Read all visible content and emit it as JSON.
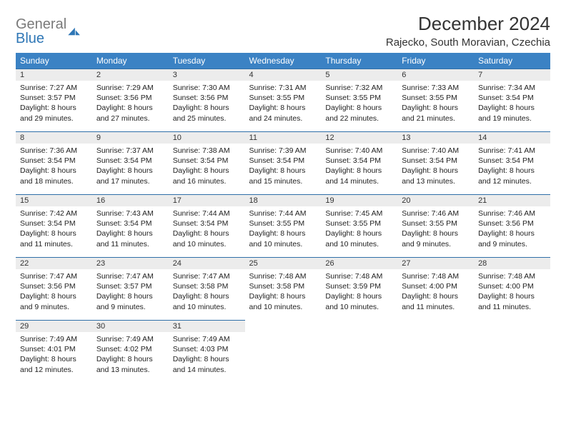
{
  "logo": {
    "text1": "General",
    "text2": "Blue"
  },
  "header": {
    "month_title": "December 2024",
    "location": "Rajecko, South Moravian, Czechia"
  },
  "colors": {
    "header_bg": "#3b82c4",
    "header_text": "#ffffff",
    "daynum_bg": "#ececec",
    "daynum_border": "#2f6fa8",
    "body_text": "#222222",
    "logo_gray": "#7a7a7a",
    "logo_blue": "#2f77b6"
  },
  "weekdays": [
    "Sunday",
    "Monday",
    "Tuesday",
    "Wednesday",
    "Thursday",
    "Friday",
    "Saturday"
  ],
  "weeks": [
    [
      {
        "n": "1",
        "sr": "7:27 AM",
        "ss": "3:57 PM",
        "dl": "8 hours and 29 minutes."
      },
      {
        "n": "2",
        "sr": "7:29 AM",
        "ss": "3:56 PM",
        "dl": "8 hours and 27 minutes."
      },
      {
        "n": "3",
        "sr": "7:30 AM",
        "ss": "3:56 PM",
        "dl": "8 hours and 25 minutes."
      },
      {
        "n": "4",
        "sr": "7:31 AM",
        "ss": "3:55 PM",
        "dl": "8 hours and 24 minutes."
      },
      {
        "n": "5",
        "sr": "7:32 AM",
        "ss": "3:55 PM",
        "dl": "8 hours and 22 minutes."
      },
      {
        "n": "6",
        "sr": "7:33 AM",
        "ss": "3:55 PM",
        "dl": "8 hours and 21 minutes."
      },
      {
        "n": "7",
        "sr": "7:34 AM",
        "ss": "3:54 PM",
        "dl": "8 hours and 19 minutes."
      }
    ],
    [
      {
        "n": "8",
        "sr": "7:36 AM",
        "ss": "3:54 PM",
        "dl": "8 hours and 18 minutes."
      },
      {
        "n": "9",
        "sr": "7:37 AM",
        "ss": "3:54 PM",
        "dl": "8 hours and 17 minutes."
      },
      {
        "n": "10",
        "sr": "7:38 AM",
        "ss": "3:54 PM",
        "dl": "8 hours and 16 minutes."
      },
      {
        "n": "11",
        "sr": "7:39 AM",
        "ss": "3:54 PM",
        "dl": "8 hours and 15 minutes."
      },
      {
        "n": "12",
        "sr": "7:40 AM",
        "ss": "3:54 PM",
        "dl": "8 hours and 14 minutes."
      },
      {
        "n": "13",
        "sr": "7:40 AM",
        "ss": "3:54 PM",
        "dl": "8 hours and 13 minutes."
      },
      {
        "n": "14",
        "sr": "7:41 AM",
        "ss": "3:54 PM",
        "dl": "8 hours and 12 minutes."
      }
    ],
    [
      {
        "n": "15",
        "sr": "7:42 AM",
        "ss": "3:54 PM",
        "dl": "8 hours and 11 minutes."
      },
      {
        "n": "16",
        "sr": "7:43 AM",
        "ss": "3:54 PM",
        "dl": "8 hours and 11 minutes."
      },
      {
        "n": "17",
        "sr": "7:44 AM",
        "ss": "3:54 PM",
        "dl": "8 hours and 10 minutes."
      },
      {
        "n": "18",
        "sr": "7:44 AM",
        "ss": "3:55 PM",
        "dl": "8 hours and 10 minutes."
      },
      {
        "n": "19",
        "sr": "7:45 AM",
        "ss": "3:55 PM",
        "dl": "8 hours and 10 minutes."
      },
      {
        "n": "20",
        "sr": "7:46 AM",
        "ss": "3:55 PM",
        "dl": "8 hours and 9 minutes."
      },
      {
        "n": "21",
        "sr": "7:46 AM",
        "ss": "3:56 PM",
        "dl": "8 hours and 9 minutes."
      }
    ],
    [
      {
        "n": "22",
        "sr": "7:47 AM",
        "ss": "3:56 PM",
        "dl": "8 hours and 9 minutes."
      },
      {
        "n": "23",
        "sr": "7:47 AM",
        "ss": "3:57 PM",
        "dl": "8 hours and 9 minutes."
      },
      {
        "n": "24",
        "sr": "7:47 AM",
        "ss": "3:58 PM",
        "dl": "8 hours and 10 minutes."
      },
      {
        "n": "25",
        "sr": "7:48 AM",
        "ss": "3:58 PM",
        "dl": "8 hours and 10 minutes."
      },
      {
        "n": "26",
        "sr": "7:48 AM",
        "ss": "3:59 PM",
        "dl": "8 hours and 10 minutes."
      },
      {
        "n": "27",
        "sr": "7:48 AM",
        "ss": "4:00 PM",
        "dl": "8 hours and 11 minutes."
      },
      {
        "n": "28",
        "sr": "7:48 AM",
        "ss": "4:00 PM",
        "dl": "8 hours and 11 minutes."
      }
    ],
    [
      {
        "n": "29",
        "sr": "7:49 AM",
        "ss": "4:01 PM",
        "dl": "8 hours and 12 minutes."
      },
      {
        "n": "30",
        "sr": "7:49 AM",
        "ss": "4:02 PM",
        "dl": "8 hours and 13 minutes."
      },
      {
        "n": "31",
        "sr": "7:49 AM",
        "ss": "4:03 PM",
        "dl": "8 hours and 14 minutes."
      },
      null,
      null,
      null,
      null
    ]
  ],
  "labels": {
    "sunrise": "Sunrise: ",
    "sunset": "Sunset: ",
    "daylight": "Daylight: "
  }
}
